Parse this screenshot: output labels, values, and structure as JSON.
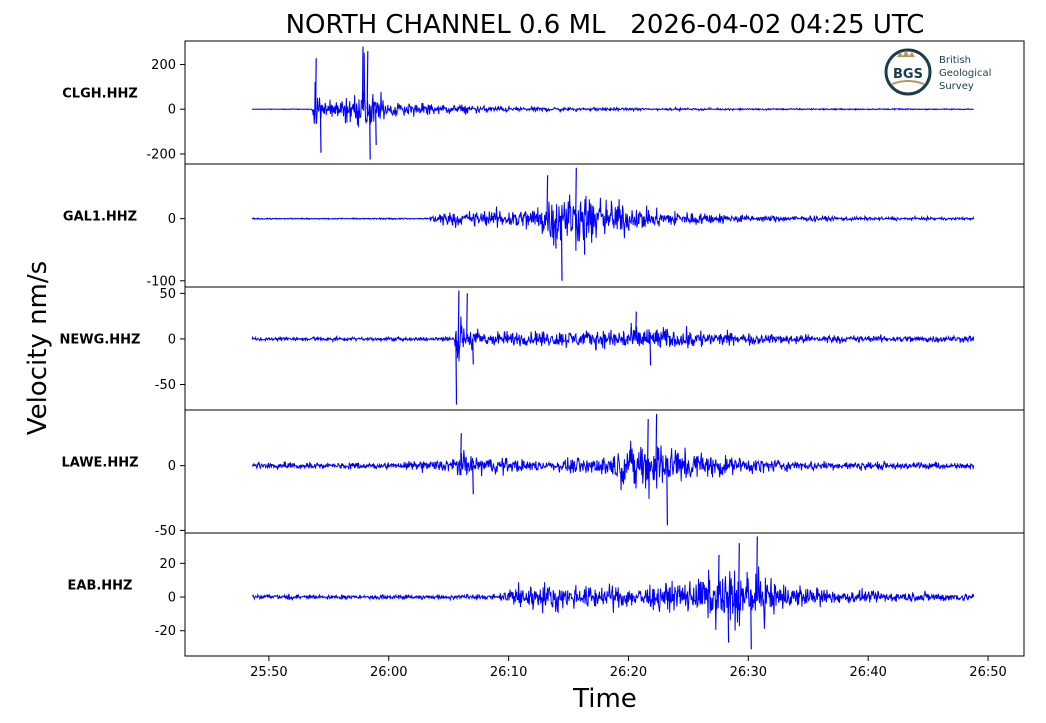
{
  "title": "NORTH CHANNEL 0.6 ML   2026-04-02 04:25 UTC",
  "ylabel": "Velocity nm/s",
  "xlabel": "Time",
  "logo": {
    "mark": "BGS",
    "lines": [
      "British",
      "Geological",
      "Survey"
    ],
    "colors": {
      "ring": "#1a3c4a",
      "gold": "#b8955a"
    }
  },
  "colors": {
    "trace": "#0000ff",
    "axis": "#000000",
    "background": "#ffffff"
  },
  "chart_data": {
    "type": "line",
    "x_unit": "mm:ss after 04:25 UTC",
    "xlim_seconds": [
      1543,
      3010
    ],
    "xticks": [
      {
        "label": "25:50",
        "value": 1550
      },
      {
        "label": "26:00",
        "value": 1560
      },
      {
        "label": "26:10",
        "value": 1570
      },
      {
        "label": "26:20",
        "value": 1580
      },
      {
        "label": "26:30",
        "value": 1590
      },
      {
        "label": "26:40",
        "value": 1600
      },
      {
        "label": "26:50",
        "value": 1610
      }
    ],
    "grid": false,
    "legend": "none",
    "panels": [
      {
        "station": "CLGH.HHZ",
        "ylim": [
          -245,
          305
        ],
        "yticks": [
          {
            "label": "200",
            "value": 200
          },
          {
            "label": "0",
            "value": 0
          },
          {
            "label": "-200",
            "value": -200
          }
        ],
        "noise": 2,
        "envelope": [
          [
            1548.5,
            2
          ],
          [
            1553.6,
            2
          ],
          [
            1553.8,
            150
          ],
          [
            1554.3,
            90
          ],
          [
            1555.5,
            50
          ],
          [
            1557.5,
            120
          ],
          [
            1558.0,
            260
          ],
          [
            1558.5,
            120
          ],
          [
            1560,
            60
          ],
          [
            1565,
            30
          ],
          [
            1570,
            15
          ],
          [
            1580,
            8
          ],
          [
            1590,
            5
          ],
          [
            1608.8,
            3
          ]
        ],
        "spikes": [
          [
            1553.9,
            228
          ],
          [
            1554.3,
            -195
          ],
          [
            1557.8,
            280
          ],
          [
            1558.4,
            -225
          ],
          [
            1558.2,
            260
          ],
          [
            1558.9,
            -160
          ]
        ]
      },
      {
        "station": "GAL1.HHZ",
        "ylim": [
          -110,
          88
        ],
        "yticks": [
          {
            "label": "0",
            "value": 0
          },
          {
            "label": "-100",
            "value": -100
          }
        ],
        "noise": 1.5,
        "envelope": [
          [
            1548.5,
            1.5
          ],
          [
            1563.3,
            1.5
          ],
          [
            1563.5,
            15
          ],
          [
            1565,
            15
          ],
          [
            1568,
            18
          ],
          [
            1572,
            25
          ],
          [
            1573.5,
            50
          ],
          [
            1575,
            65
          ],
          [
            1577,
            55
          ],
          [
            1579,
            40
          ],
          [
            1582,
            20
          ],
          [
            1590,
            8
          ],
          [
            1600,
            4
          ],
          [
            1608.8,
            2.5
          ]
        ],
        "spikes": [
          [
            1573.2,
            70
          ],
          [
            1574.4,
            -100
          ],
          [
            1575.6,
            82
          ],
          [
            1576.3,
            -58
          ],
          [
            1573.9,
            -48
          ]
        ]
      },
      {
        "station": "NEWG.HHZ",
        "ylim": [
          -78,
          57
        ],
        "yticks": [
          {
            "label": "50",
            "value": 50
          },
          {
            "label": "0",
            "value": 0
          },
          {
            "label": "-50",
            "value": -50
          }
        ],
        "noise": 3,
        "envelope": [
          [
            1548.5,
            3
          ],
          [
            1565.5,
            3
          ],
          [
            1565.6,
            35
          ],
          [
            1566.5,
            20
          ],
          [
            1568,
            12
          ],
          [
            1572,
            12
          ],
          [
            1578,
            14
          ],
          [
            1581,
            20
          ],
          [
            1584,
            15
          ],
          [
            1590,
            8
          ],
          [
            1600,
            5
          ],
          [
            1608.8,
            5
          ]
        ],
        "spikes": [
          [
            1565.6,
            -72
          ],
          [
            1565.8,
            53
          ],
          [
            1566.5,
            50
          ],
          [
            1567.0,
            -28
          ],
          [
            1580.6,
            30
          ],
          [
            1581.8,
            -29
          ]
        ]
      },
      {
        "station": "LAWE.HHZ",
        "ylim": [
          -52,
          43
        ],
        "yticks": [
          {
            "label": "0",
            "value": 0
          },
          {
            "label": "-50",
            "value": -50
          }
        ],
        "noise": 3.5,
        "envelope": [
          [
            1548.5,
            3.5
          ],
          [
            1560,
            3
          ],
          [
            1565,
            8
          ],
          [
            1566.5,
            14
          ],
          [
            1568,
            10
          ],
          [
            1573,
            5
          ],
          [
            1578,
            11
          ],
          [
            1581,
            25
          ],
          [
            1582.5,
            32
          ],
          [
            1584,
            22
          ],
          [
            1588,
            10
          ],
          [
            1595,
            5
          ],
          [
            1608.8,
            3.5
          ]
        ],
        "spikes": [
          [
            1582.3,
            40
          ],
          [
            1583.2,
            -46
          ],
          [
            1581.6,
            36
          ],
          [
            1566.0,
            25
          ],
          [
            1567.0,
            -22
          ]
        ]
      },
      {
        "station": "EAB.HHZ",
        "ylim": [
          -35,
          38
        ],
        "yticks": [
          {
            "label": "20",
            "value": 20
          },
          {
            "label": "0",
            "value": 0
          },
          {
            "label": "-20",
            "value": -20
          }
        ],
        "noise": 2,
        "envelope": [
          [
            1548.5,
            2
          ],
          [
            1569,
            2
          ],
          [
            1570,
            8
          ],
          [
            1572,
            12
          ],
          [
            1576,
            9
          ],
          [
            1580,
            9
          ],
          [
            1584,
            12
          ],
          [
            1587,
            18
          ],
          [
            1589,
            26
          ],
          [
            1590,
            20
          ],
          [
            1593,
            12
          ],
          [
            1597,
            6
          ],
          [
            1608.8,
            3
          ]
        ],
        "spikes": [
          [
            1589.2,
            32
          ],
          [
            1590.2,
            -31
          ],
          [
            1588.3,
            -27
          ],
          [
            1590.7,
            36
          ],
          [
            1587.5,
            25
          ]
        ]
      }
    ]
  }
}
